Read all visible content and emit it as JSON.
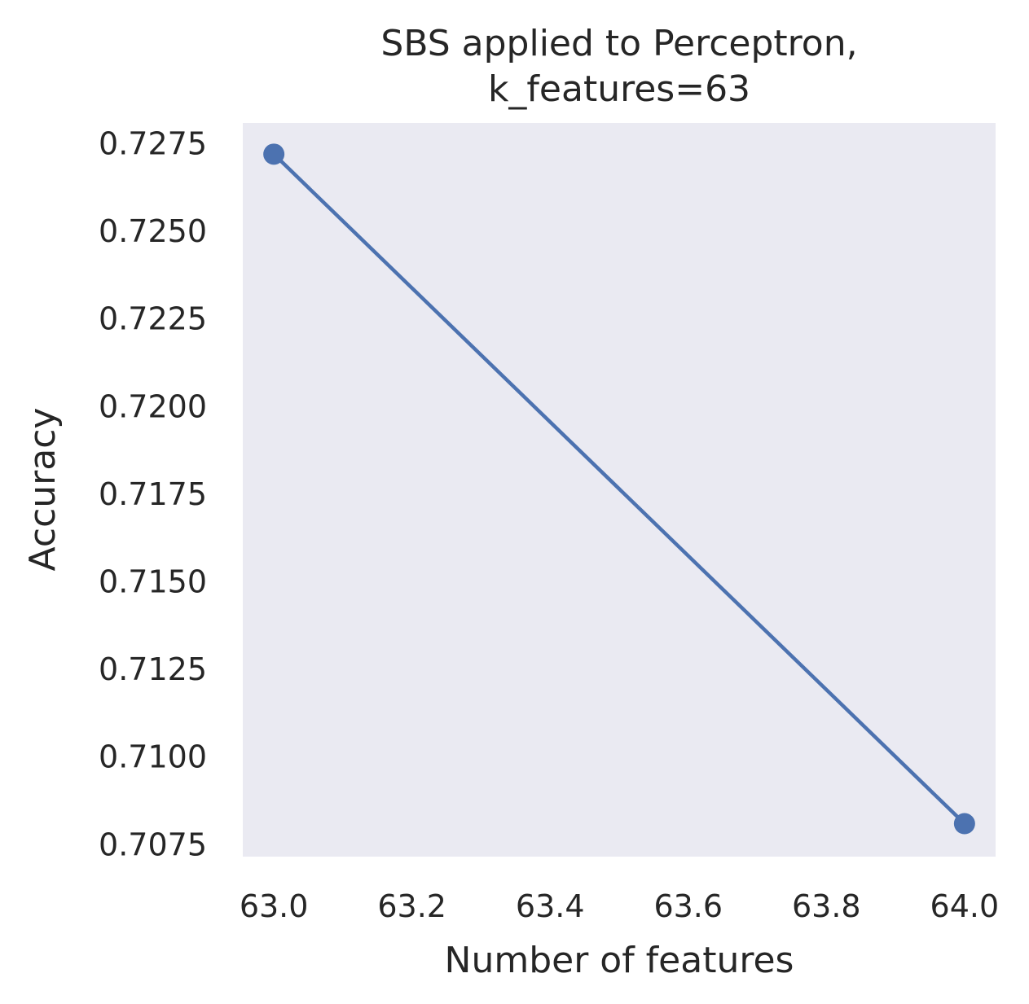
{
  "chart_data": {
    "type": "line",
    "title_lines": [
      "SBS applied to Perceptron,",
      "k_features=63"
    ],
    "xlabel": "Number of features",
    "ylabel": "Accuracy",
    "x_ticks": [
      "63.0",
      "63.2",
      "63.4",
      "63.6",
      "63.8",
      "64.0"
    ],
    "y_ticks": [
      "0.7075",
      "0.7100",
      "0.7125",
      "0.7150",
      "0.7175",
      "0.7200",
      "0.7225",
      "0.7250",
      "0.7275"
    ],
    "xlim": [
      62.955,
      64.045
    ],
    "ylim": [
      0.70716,
      0.72809
    ],
    "grid": false,
    "series": [
      {
        "color": "#4c72b0",
        "marker": "circle",
        "x": [
          63,
          64
        ],
        "y": [
          0.7272,
          0.7081
        ]
      }
    ],
    "colors": {
      "plot_background": "#eaeaf2",
      "text": "#262626"
    }
  }
}
